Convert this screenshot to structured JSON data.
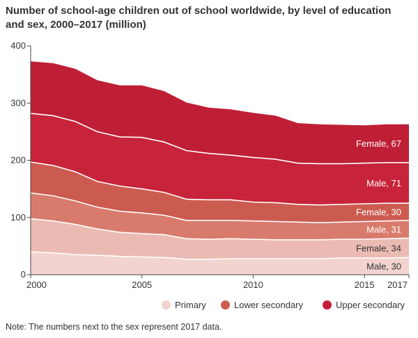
{
  "chart_data": {
    "type": "area",
    "stacked": true,
    "title_lines": [
      "Number of school-age children out of school worldwide, by level of education",
      "and sex, 2000–2017 (million)"
    ],
    "xlabel": "",
    "ylabel": "",
    "x": [
      2000,
      2001,
      2002,
      2003,
      2004,
      2005,
      2006,
      2007,
      2008,
      2009,
      2010,
      2011,
      2012,
      2013,
      2014,
      2015,
      2016,
      2017
    ],
    "x_ticks": [
      2000,
      2005,
      2010,
      2015,
      2017
    ],
    "y_ticks": [
      0,
      100,
      200,
      300,
      400
    ],
    "xlim": [
      2000,
      2017
    ],
    "ylim": [
      0,
      400
    ],
    "grid": false,
    "legend_position": "bottom-right",
    "series": [
      {
        "level": "Primary",
        "sex": "Male",
        "label": "Male, 30",
        "color": "#f2d3cf",
        "values": [
          40,
          38,
          35,
          34,
          32,
          31,
          30,
          27,
          27,
          28,
          28,
          28,
          28,
          28,
          29,
          29,
          29,
          30
        ]
      },
      {
        "level": "Primary",
        "sex": "Female",
        "label": "Female, 34",
        "color": "#ebbbb3",
        "values": [
          58,
          56,
          53,
          46,
          42,
          41,
          40,
          36,
          35,
          35,
          34,
          33,
          33,
          33,
          33,
          33,
          34,
          34
        ]
      },
      {
        "level": "Lower secondary",
        "sex": "Male",
        "label": "Male, 31",
        "color": "#d87b6c",
        "values": [
          45,
          44,
          41,
          38,
          37,
          36,
          34,
          32,
          33,
          32,
          32,
          32,
          31,
          30,
          30,
          31,
          31,
          31
        ]
      },
      {
        "level": "Lower secondary",
        "sex": "Female",
        "label": "Female, 30",
        "color": "#cc5b4f",
        "values": [
          54,
          53,
          51,
          45,
          44,
          42,
          40,
          37,
          36,
          36,
          33,
          33,
          31,
          31,
          31,
          31,
          31,
          30
        ]
      },
      {
        "level": "Upper secondary",
        "sex": "Male",
        "label": "Male, 71",
        "color": "#c7233a",
        "values": [
          85,
          87,
          88,
          87,
          86,
          90,
          88,
          85,
          81,
          78,
          78,
          76,
          72,
          72,
          71,
          71,
          71,
          71
        ]
      },
      {
        "level": "Upper secondary",
        "sex": "Female",
        "label": "Female, 67",
        "color": "#bf1f36",
        "values": [
          91,
          92,
          92,
          90,
          90,
          91,
          89,
          84,
          80,
          80,
          78,
          76,
          70,
          69,
          68,
          66,
          67,
          67
        ]
      }
    ],
    "legend": [
      {
        "name": "Primary",
        "color": "#f2d3cf"
      },
      {
        "name": "Lower secondary",
        "color": "#cc5b4f"
      },
      {
        "name": "Upper secondary",
        "color": "#c31d38"
      }
    ],
    "note": "Note: The numbers next to the sex represent 2017 data."
  }
}
